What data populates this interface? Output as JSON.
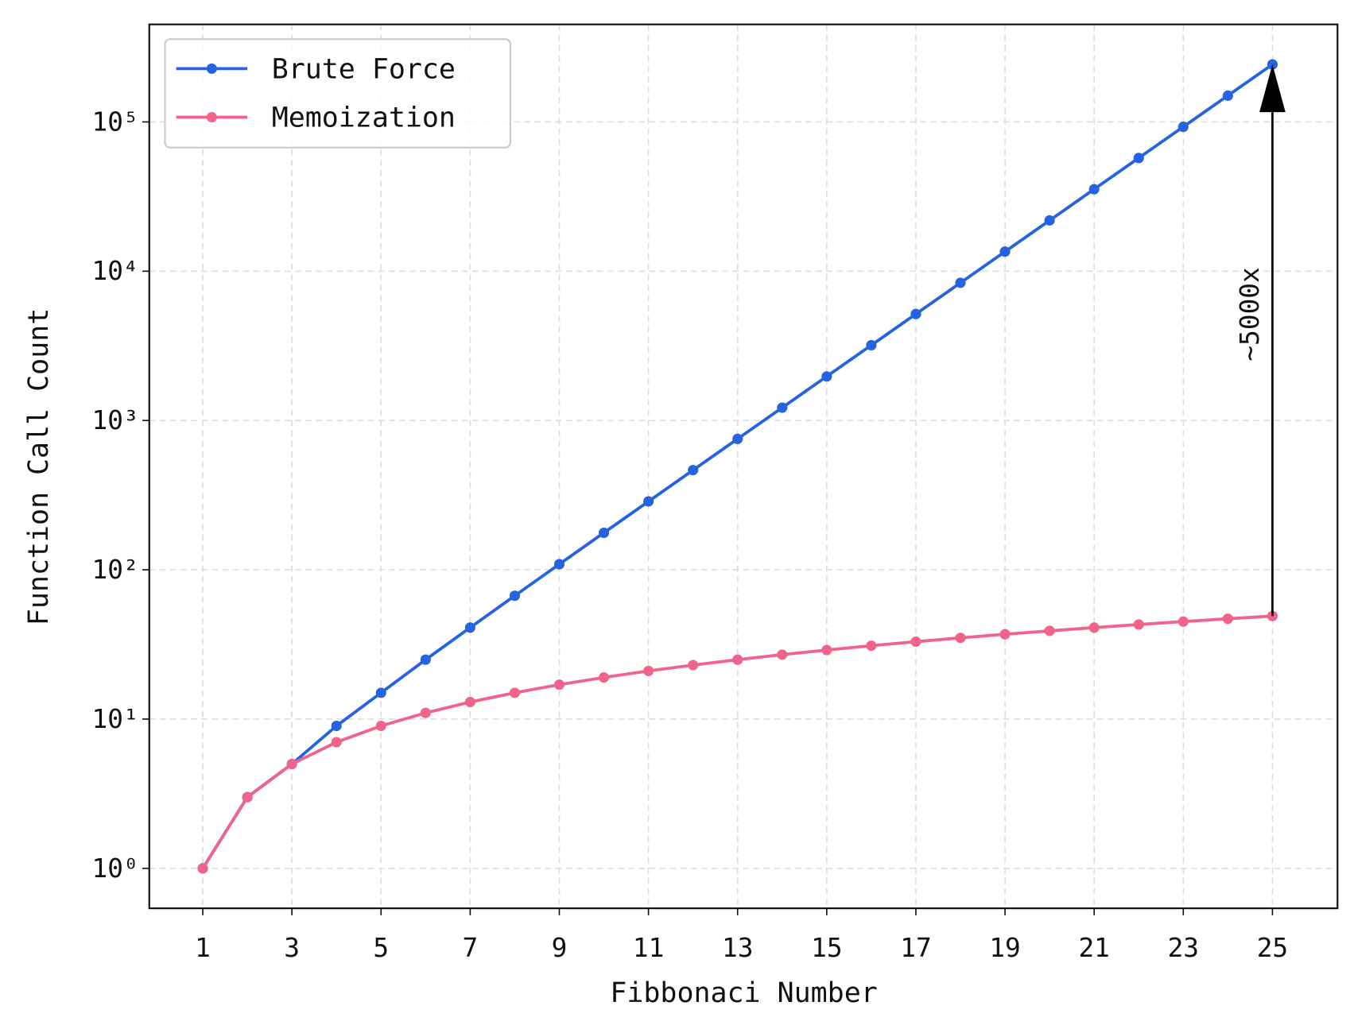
{
  "chart_data": {
    "type": "line",
    "xlabel": "Fibbonaci Number",
    "ylabel": "Function Call Count",
    "x": [
      1,
      2,
      3,
      4,
      5,
      6,
      7,
      8,
      9,
      10,
      11,
      12,
      13,
      14,
      15,
      16,
      17,
      18,
      19,
      20,
      21,
      22,
      23,
      24,
      25
    ],
    "series": [
      {
        "name": "Brute Force",
        "color": "#2563e0",
        "values": [
          1,
          3,
          5,
          9,
          15,
          25,
          41,
          67,
          109,
          177,
          287,
          465,
          753,
          1219,
          1973,
          3193,
          5167,
          8361,
          13529,
          21891,
          35421,
          57313,
          92735,
          150049,
          242785
        ]
      },
      {
        "name": "Memoization",
        "color": "#f0648c",
        "values": [
          1,
          3,
          5,
          7,
          9,
          11,
          13,
          15,
          17,
          19,
          21,
          23,
          25,
          27,
          29,
          31,
          33,
          35,
          37,
          39,
          41,
          43,
          45,
          47,
          49
        ]
      }
    ],
    "xlim": [
      -0.2,
      26.46
    ],
    "xticks": [
      1,
      3,
      5,
      7,
      9,
      11,
      13,
      15,
      17,
      19,
      21,
      23,
      25
    ],
    "ylim": [
      0.54,
      450000
    ],
    "log_y": true,
    "yticks": [
      {
        "value": 1,
        "label": "10⁰"
      },
      {
        "value": 10,
        "label": "10¹"
      },
      {
        "value": 100,
        "label": "10²"
      },
      {
        "value": 1000,
        "label": "10³"
      },
      {
        "value": 10000,
        "label": "10⁴"
      },
      {
        "value": 100000,
        "label": "10⁵"
      }
    ],
    "grid": true,
    "legend": "upper left",
    "annotation": {
      "text": "~5000x",
      "x": 25
    }
  }
}
